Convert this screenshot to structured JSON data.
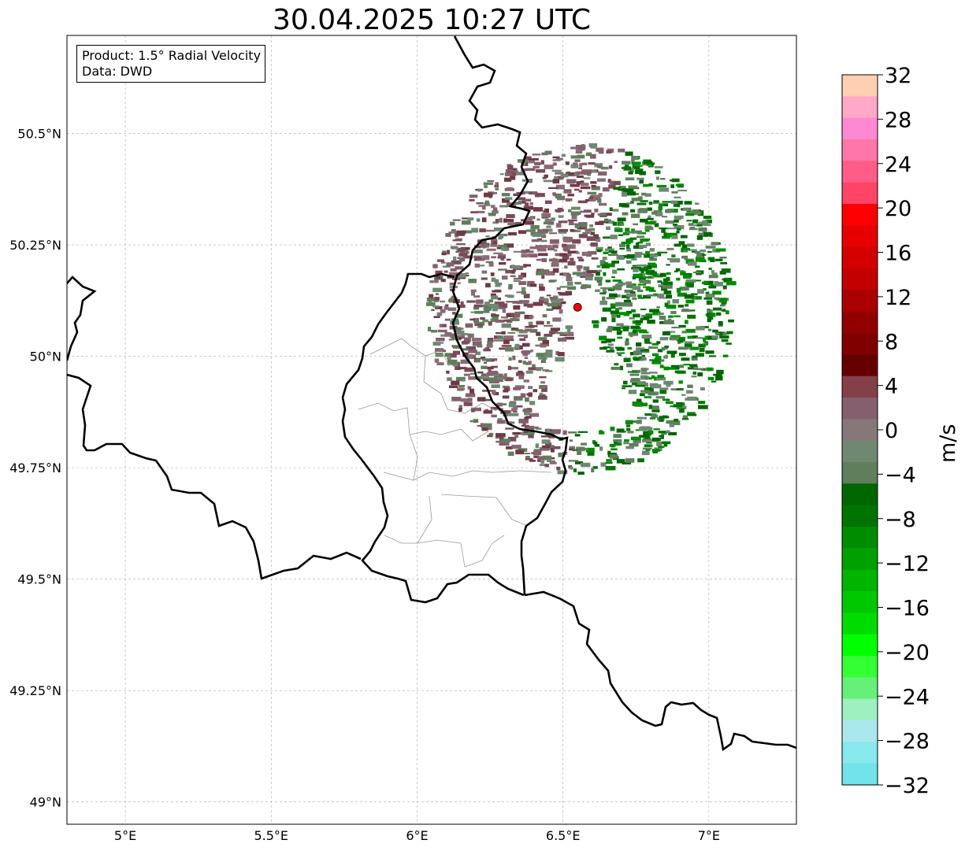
{
  "title": "30.04.2025 10:27 UTC",
  "info": {
    "product": "Product: 1.5° Radial Velocity",
    "source": "Data: DWD"
  },
  "map": {
    "extent": {
      "lon": [
        4.8,
        7.3
      ],
      "lat": [
        48.95,
        50.72
      ]
    },
    "x_ticks": [
      {
        "value": 5.0,
        "label": "5°E"
      },
      {
        "value": 5.5,
        "label": "5.5°E"
      },
      {
        "value": 6.0,
        "label": "6°E"
      },
      {
        "value": 6.5,
        "label": "6.5°E"
      },
      {
        "value": 7.0,
        "label": "7°E"
      }
    ],
    "y_ticks": [
      {
        "value": 50.5,
        "label": "50.5°N"
      },
      {
        "value": 50.25,
        "label": "50.25°N"
      },
      {
        "value": 50.0,
        "label": "50°N"
      },
      {
        "value": 49.75,
        "label": "49.75°N"
      },
      {
        "value": 49.5,
        "label": "49.5°N"
      },
      {
        "value": 49.25,
        "label": "49.25°N"
      },
      {
        "value": 49.0,
        "label": "49°N"
      }
    ],
    "grid": true,
    "radar_site": {
      "lon": 6.55,
      "lat": 50.11,
      "color": "#ff0000"
    },
    "radar_range_deg": {
      "lon": 0.52,
      "lat": 0.37
    }
  },
  "colorbar": {
    "label": "m/s",
    "min": -32,
    "max": 32,
    "step": 2,
    "tick_labels": [
      "32",
      "28",
      "24",
      "20",
      "16",
      "12",
      "8",
      "4",
      "0",
      "−4",
      "−8",
      "−12",
      "−16",
      "−20",
      "−24",
      "−28",
      "−32"
    ],
    "tick_values": [
      32,
      28,
      24,
      20,
      16,
      12,
      8,
      4,
      0,
      -4,
      -8,
      -12,
      -16,
      -20,
      -24,
      -28,
      -32
    ],
    "colors_top_to_bottom": [
      "#ffcfb2",
      "#ffa8c8",
      "#ff88d2",
      "#ff76a8",
      "#ff5c88",
      "#ff4466",
      "#ff0000",
      "#e60000",
      "#d40000",
      "#c20000",
      "#aa0000",
      "#920000",
      "#800000",
      "#660000",
      "#844048",
      "#84606e",
      "#867878",
      "#6e8872",
      "#5e7e5c",
      "#006600",
      "#007300",
      "#008c00",
      "#00a000",
      "#00b400",
      "#00c800",
      "#00dc00",
      "#00ff00",
      "#33ff33",
      "#66f07a",
      "#9ef0c0",
      "#a8e8ec",
      "#88e8ec",
      "#70e4e8"
    ]
  }
}
